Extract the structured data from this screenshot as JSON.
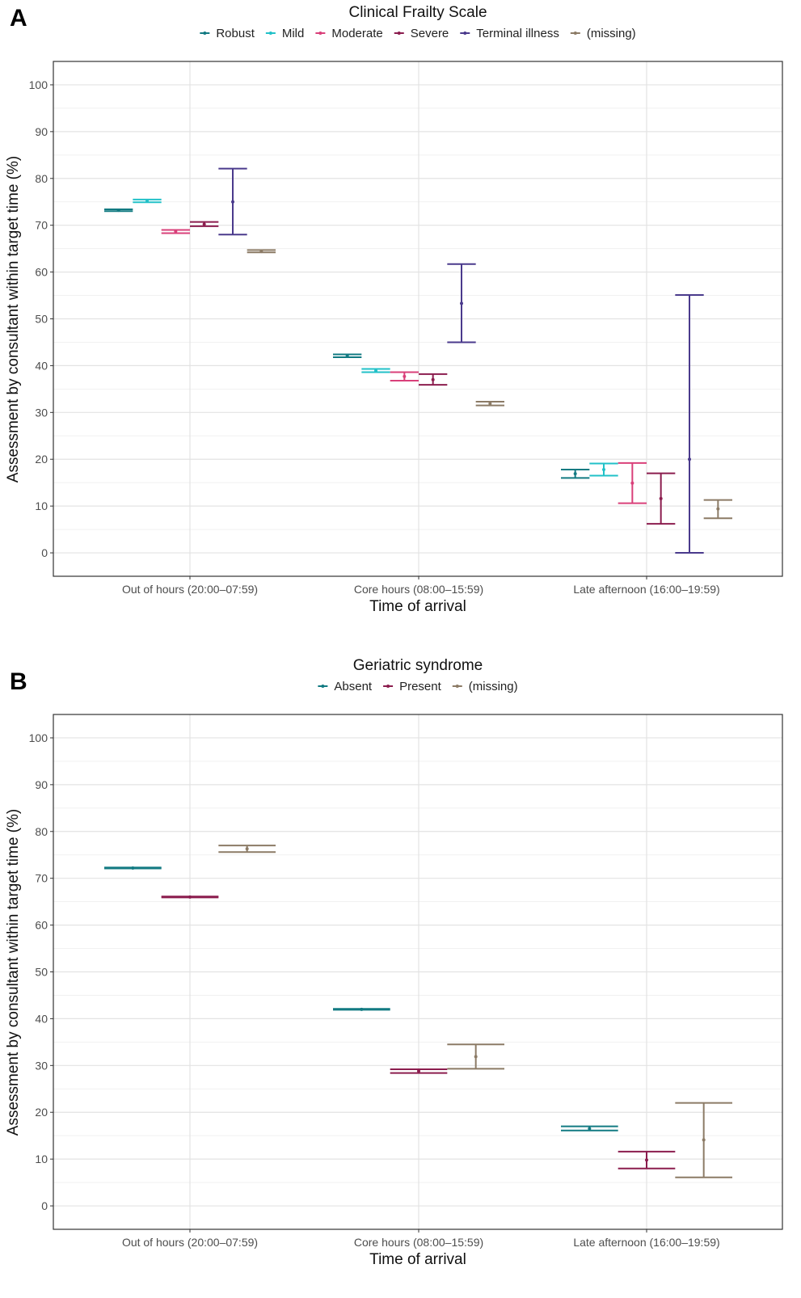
{
  "chart_data": [
    {
      "panel": "A",
      "type": "errorbar",
      "title": "Clinical Frailty Scale",
      "xlabel": "Time of arrival",
      "ylabel": "Assessment by consultant within target time (%)",
      "ylim": [
        -5,
        105
      ],
      "yticks": [
        0,
        10,
        20,
        30,
        40,
        50,
        60,
        70,
        80,
        90,
        100
      ],
      "grid": true,
      "legend_position": "top",
      "categories": [
        "Out of hours (20:00–07:59)",
        "Core hours (08:00–15:59)",
        "Late afternoon (16:00–19:59)"
      ],
      "series": [
        {
          "name": "Robust",
          "color": "#127a82",
          "values": [
            73.2,
            42.1,
            16.9
          ],
          "lower": [
            73.0,
            41.8,
            16.0
          ],
          "upper": [
            73.4,
            42.4,
            17.8
          ]
        },
        {
          "name": "Mild",
          "color": "#22c1c8",
          "values": [
            75.2,
            38.9,
            17.8
          ],
          "lower": [
            74.9,
            38.6,
            16.5
          ],
          "upper": [
            75.5,
            39.3,
            19.1
          ]
        },
        {
          "name": "Moderate",
          "color": "#d9407a",
          "values": [
            68.7,
            37.7,
            14.9
          ],
          "lower": [
            68.3,
            36.8,
            10.6
          ],
          "upper": [
            69.0,
            38.6,
            19.2
          ]
        },
        {
          "name": "Severe",
          "color": "#8b1d4e",
          "values": [
            70.2,
            37.0,
            11.6
          ],
          "lower": [
            69.8,
            35.9,
            6.2
          ],
          "upper": [
            70.7,
            38.2,
            17.0
          ]
        },
        {
          "name": "Terminal illness",
          "color": "#4a3a8c",
          "values": [
            75.0,
            53.3,
            20.0
          ],
          "lower": [
            68.0,
            45.0,
            0.0
          ],
          "upper": [
            82.1,
            61.7,
            55.1
          ]
        },
        {
          "name": "(missing)",
          "color": "#8c7b66",
          "values": [
            64.4,
            31.9,
            9.4
          ],
          "lower": [
            64.2,
            31.5,
            7.4
          ],
          "upper": [
            64.7,
            32.3,
            11.3
          ]
        }
      ]
    },
    {
      "panel": "B",
      "type": "errorbar",
      "title": "Geriatric syndrome",
      "xlabel": "Time of arrival",
      "ylabel": "Assessment by consultant within target time (%)",
      "ylim": [
        -5,
        105
      ],
      "yticks": [
        0,
        10,
        20,
        30,
        40,
        50,
        60,
        70,
        80,
        90,
        100
      ],
      "grid": true,
      "legend_position": "top",
      "categories": [
        "Out of hours (20:00–07:59)",
        "Core hours (08:00–15:59)",
        "Late afternoon (16:00–19:59)"
      ],
      "series": [
        {
          "name": "Absent",
          "color": "#127a82",
          "values": [
            72.2,
            42.0,
            16.5
          ],
          "lower": [
            72.1,
            41.9,
            16.1
          ],
          "upper": [
            72.3,
            42.1,
            17.0
          ]
        },
        {
          "name": "Present",
          "color": "#8b1d4e",
          "values": [
            66.0,
            28.8,
            9.8
          ],
          "lower": [
            65.9,
            28.4,
            8.0
          ],
          "upper": [
            66.1,
            29.2,
            11.6
          ]
        },
        {
          "name": "(missing)",
          "color": "#8c7b66",
          "values": [
            76.3,
            31.9,
            14.1
          ],
          "lower": [
            75.6,
            29.3,
            6.1
          ],
          "upper": [
            77.0,
            34.5,
            22.0
          ]
        }
      ]
    }
  ]
}
